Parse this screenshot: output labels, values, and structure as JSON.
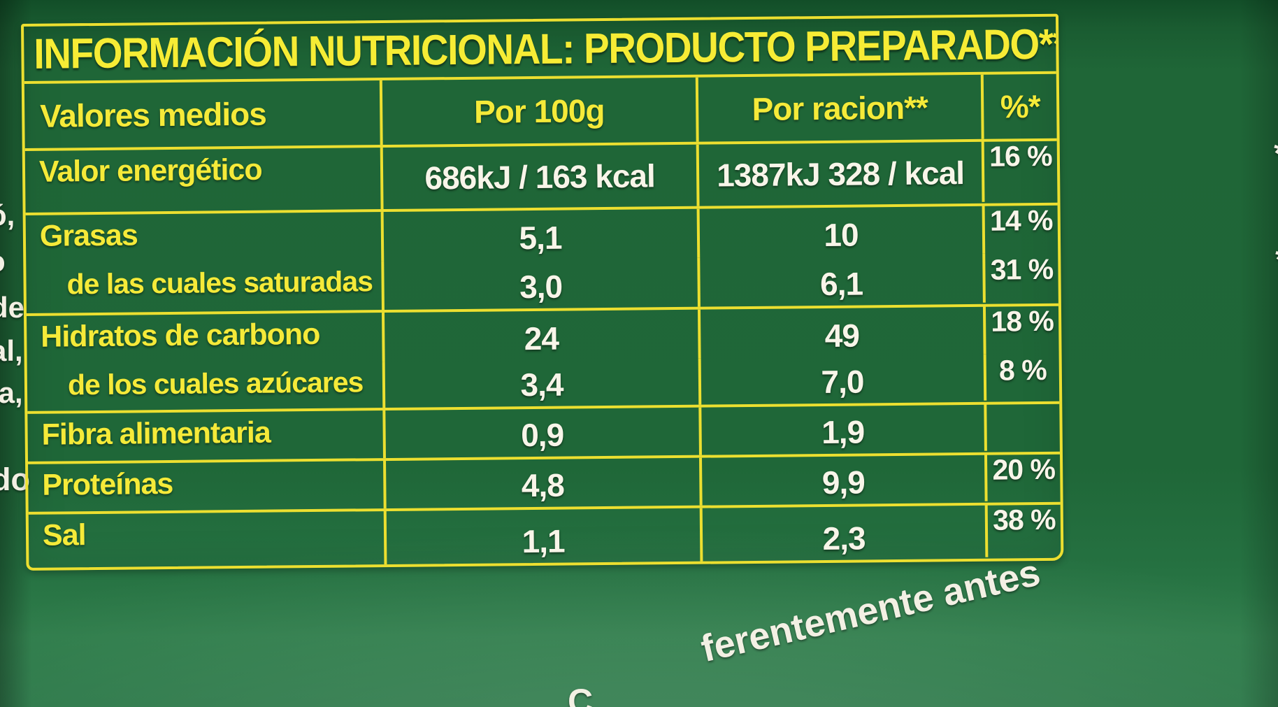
{
  "colors": {
    "background_green": "#1f6738",
    "border_yellow": "#ecdf30",
    "text_yellow": "#f5ea39",
    "text_white": "#f8f5e9"
  },
  "title": "INFORMACIÓN NUTRICIONAL: PRODUCTO PREPARADO***",
  "table": {
    "headers": [
      "Valores medios",
      "Por 100g",
      "Por racion**",
      "%*"
    ],
    "rows": [
      {
        "name": "Valor energético",
        "per100g": "686kJ / 163 kcal",
        "por_racion": "1387kJ 328 / kcal",
        "percent": "16 %"
      },
      {
        "name": "Grasas",
        "per100g": "5,1",
        "por_racion": "10",
        "percent": "14 %"
      },
      {
        "name": "de las cuales saturadas",
        "per100g": "3,0",
        "por_racion": "6,1",
        "percent": "31 %"
      },
      {
        "name": "Hidratos de carbono",
        "per100g": "24",
        "por_racion": "49",
        "percent": "18 %"
      },
      {
        "name": "de los cuales azúcares",
        "per100g": "3,4",
        "por_racion": "7,0",
        "percent": "8 %"
      },
      {
        "name": "Fibra alimentaria",
        "per100g": "0,9",
        "por_racion": "1,9",
        "percent": ""
      },
      {
        "name": "Proteínas",
        "per100g": "4,8",
        "por_racion": "9,9",
        "percent": "20 %"
      },
      {
        "name": "Sal",
        "per100g": "1,1",
        "por_racion": "2,3",
        "percent": "38 %"
      }
    ]
  },
  "edge_fragments": {
    "left": [
      "ó,",
      "o",
      "de",
      "al,",
      "la,",
      "do"
    ],
    "right": [
      "*",
      "*"
    ],
    "bottom_partial": "C",
    "bottom_text": "ferentemente antes"
  }
}
